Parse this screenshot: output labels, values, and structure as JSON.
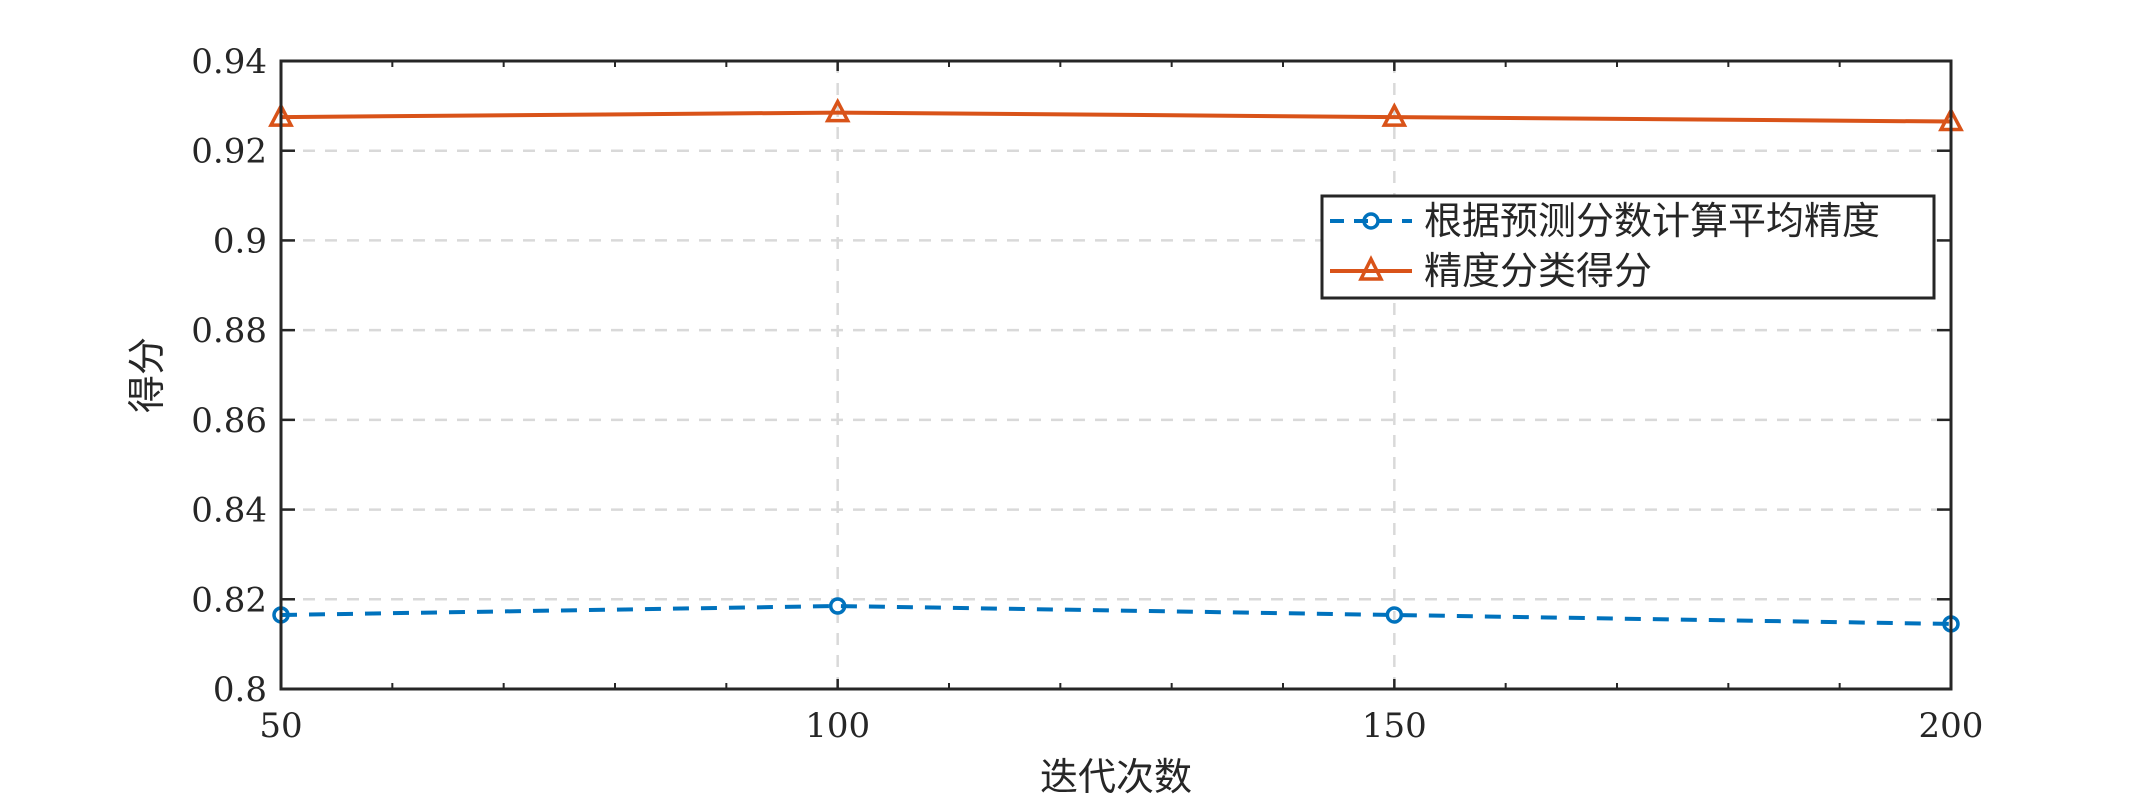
{
  "chart_data": {
    "type": "line",
    "x": [
      50,
      100,
      150,
      200
    ],
    "xticks": [
      "50",
      "100",
      "150",
      "200"
    ],
    "yticks": [
      "0.8",
      "0.82",
      "0.84",
      "0.86",
      "0.88",
      "0.9",
      "0.92",
      "0.94"
    ],
    "xlabel": "迭代次数",
    "ylabel": "得分",
    "xlim": [
      50,
      200
    ],
    "ylim": [
      0.8,
      0.94
    ],
    "grid": true,
    "legend_position": "upper-right",
    "series": [
      {
        "name": "根据预测分数计算平均精度",
        "values": [
          0.8165,
          0.8185,
          0.8165,
          0.8145
        ],
        "color": "#0072BD",
        "line_style": "dashed",
        "marker": "circle"
      },
      {
        "name": "精度分类得分",
        "values": [
          0.9275,
          0.9285,
          0.9275,
          0.9265
        ],
        "color": "#D95319",
        "line_style": "solid",
        "marker": "triangle"
      }
    ]
  }
}
